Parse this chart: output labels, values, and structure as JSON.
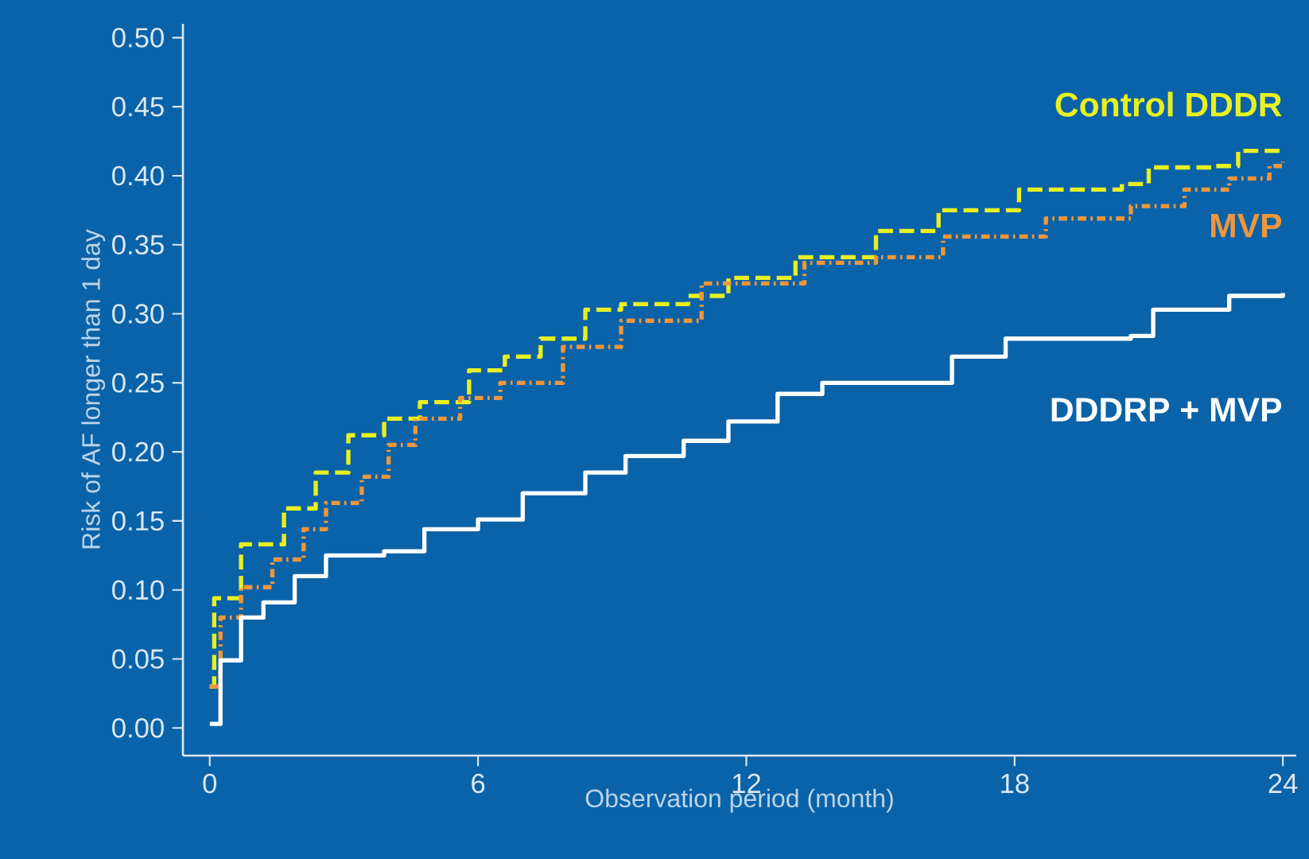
{
  "chart_data": {
    "type": "step",
    "xlabel": "Observation period (month)",
    "ylabel": "Risk of AF longer than 1 day",
    "xlim": [
      -0.6,
      24.3
    ],
    "ylim": [
      -0.02,
      0.51
    ],
    "xticks": [
      0,
      6,
      12,
      18,
      24
    ],
    "yticks": [
      {
        "value": 0,
        "label": "0.00"
      },
      {
        "value": 0.05,
        "label": "0.05"
      },
      {
        "value": 0.1,
        "label": "0.10"
      },
      {
        "value": 0.15,
        "label": "0.15"
      },
      {
        "value": 0.2,
        "label": "0.20"
      },
      {
        "value": 0.25,
        "label": "0.25"
      },
      {
        "value": 0.3,
        "label": "0.30"
      },
      {
        "value": 0.35,
        "label": "0.35"
      },
      {
        "value": 0.4,
        "label": "0.40"
      },
      {
        "value": 0.45,
        "label": "0.45"
      },
      {
        "value": 0.5,
        "label": "0.50"
      }
    ],
    "series": [
      {
        "name": "Control DDDR",
        "color": "#e8f020",
        "line_style": "dashed",
        "x": [
          0,
          0.1,
          0.7,
          1.66,
          2.37,
          3.1,
          3.9,
          4.7,
          5.8,
          6.6,
          7.4,
          8.4,
          9.2,
          10.7,
          11.6,
          13.1,
          14.9,
          16.3,
          18.1,
          20.4,
          21.0,
          22.5,
          23.0,
          24.0
        ],
        "values": [
          0.03,
          0.094,
          0.133,
          0.159,
          0.185,
          0.212,
          0.224,
          0.236,
          0.259,
          0.269,
          0.282,
          0.303,
          0.307,
          0.313,
          0.326,
          0.341,
          0.36,
          0.375,
          0.39,
          0.394,
          0.406,
          0.407,
          0.418,
          0.418
        ]
      },
      {
        "name": "MVP",
        "color": "#f0963a",
        "line_style": "dotted",
        "x": [
          0,
          0.24,
          0.7,
          1.4,
          2.1,
          2.6,
          3.4,
          4.0,
          4.6,
          5.6,
          6.5,
          7.9,
          9.2,
          11.0,
          13.3,
          14.9,
          16.4,
          18.7,
          20.6,
          21.8,
          22.8,
          23.7,
          24.0
        ],
        "values": [
          0.03,
          0.08,
          0.102,
          0.122,
          0.144,
          0.163,
          0.182,
          0.205,
          0.224,
          0.239,
          0.25,
          0.276,
          0.295,
          0.322,
          0.337,
          0.341,
          0.356,
          0.369,
          0.378,
          0.39,
          0.398,
          0.407,
          0.41
        ]
      },
      {
        "name": "DDDRP + MVP",
        "color": "#ffffff",
        "line_style": "solid",
        "x": [
          0,
          0.24,
          0.7,
          1.2,
          1.9,
          2.6,
          3.9,
          4.8,
          6.0,
          7.0,
          8.4,
          9.3,
          10.6,
          11.6,
          12.7,
          13.7,
          15.1,
          16.6,
          17.8,
          20.6,
          21.1,
          22.4,
          22.8,
          24.0
        ],
        "values": [
          0.003,
          0.049,
          0.08,
          0.091,
          0.11,
          0.125,
          0.128,
          0.144,
          0.151,
          0.17,
          0.185,
          0.197,
          0.208,
          0.222,
          0.242,
          0.25,
          0.25,
          0.269,
          0.282,
          0.284,
          0.303,
          0.303,
          0.313,
          0.315
        ]
      }
    ]
  }
}
